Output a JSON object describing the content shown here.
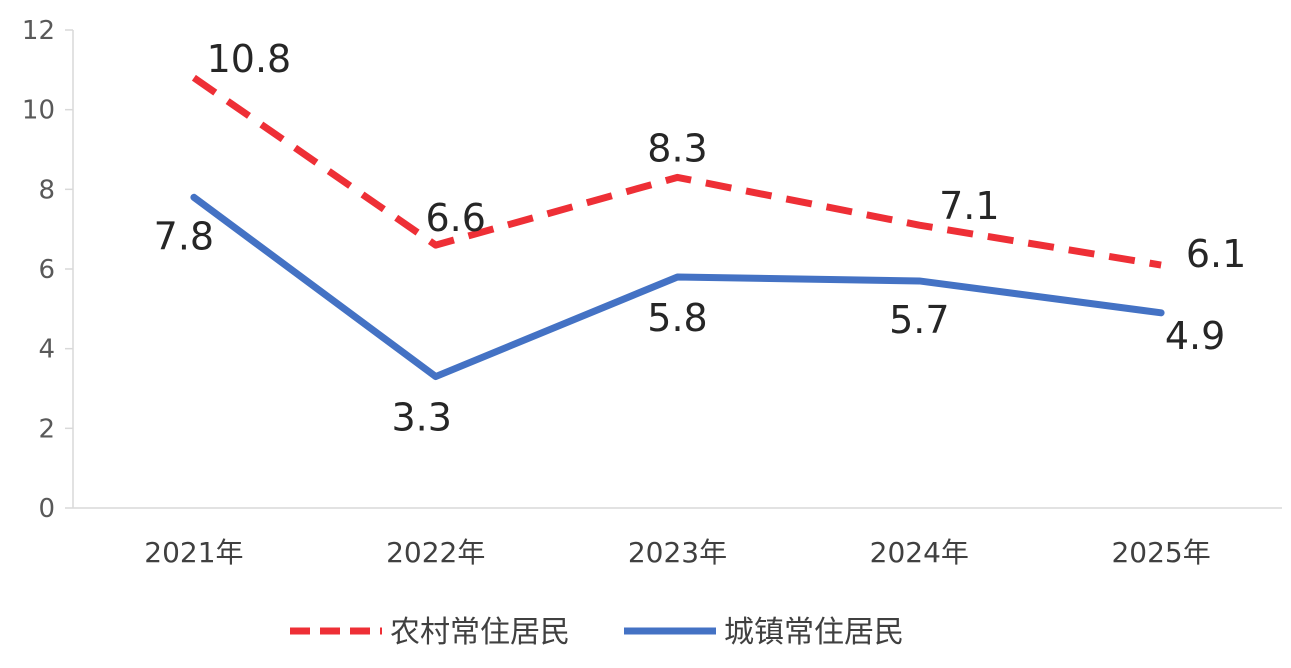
{
  "chart_data": {
    "type": "line",
    "categories": [
      "2021年",
      "2022年",
      "2023年",
      "2024年",
      "2025年"
    ],
    "series": [
      {
        "name": "农村常住居民",
        "values": [
          10.8,
          6.6,
          8.3,
          7.1,
          6.1
        ],
        "color": "#ee2f36",
        "style": "dashed"
      },
      {
        "name": "城镇常住居民",
        "values": [
          7.8,
          3.3,
          5.8,
          5.7,
          4.9
        ],
        "color": "#4472c4",
        "style": "solid"
      }
    ],
    "yticks": [
      "0",
      "2",
      "4",
      "6",
      "8",
      "10",
      "12"
    ],
    "ylim": [
      0,
      12
    ],
    "grid": false,
    "legend": "bottom"
  }
}
